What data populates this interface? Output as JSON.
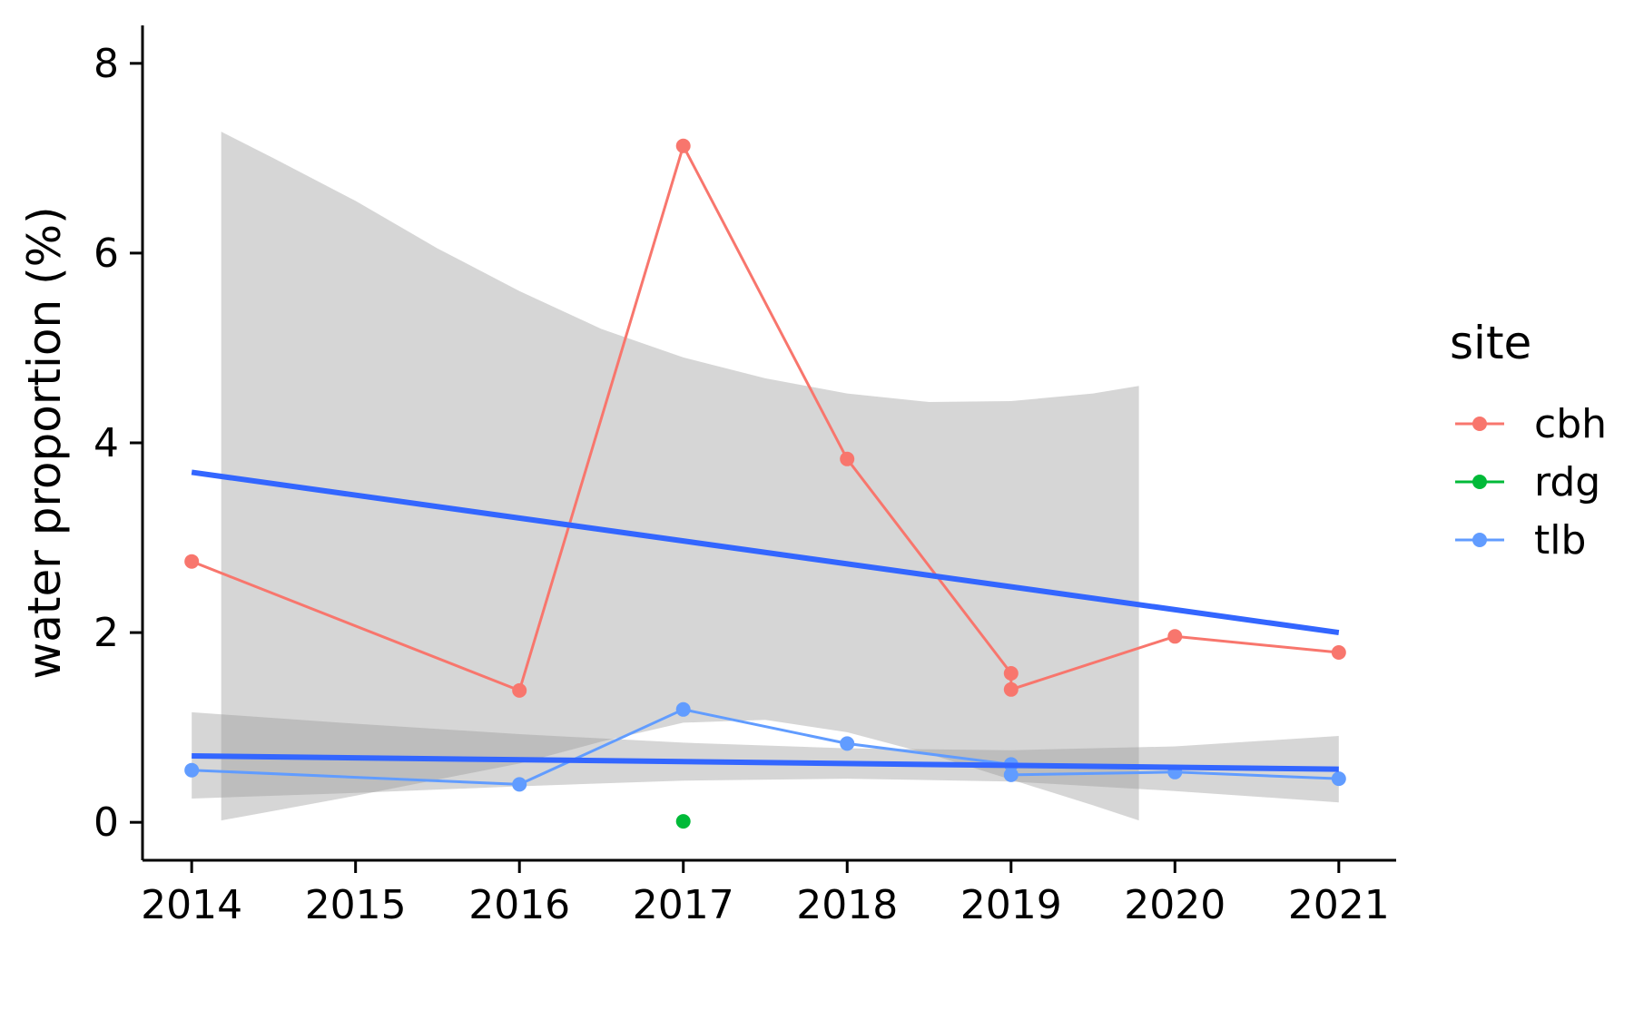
{
  "chart_data": {
    "type": "line",
    "ylabel": "water proportion (%)",
    "xlabel": "",
    "xlim": [
      2013.7,
      2021.35
    ],
    "ylim": [
      -0.4,
      8.4
    ],
    "x_ticks": [
      2014,
      2015,
      2016,
      2017,
      2018,
      2019,
      2020,
      2021
    ],
    "y_ticks": [
      0,
      2,
      4,
      6,
      8
    ],
    "grid": false,
    "legend": {
      "title": "site",
      "placement": "right"
    },
    "series": [
      {
        "name": "cbh",
        "color": "#F8766D",
        "points": [
          [
            2014,
            2.75
          ],
          [
            2016,
            1.39
          ],
          [
            2017,
            7.13
          ],
          [
            2018,
            3.83
          ],
          [
            2019,
            1.57
          ],
          [
            2019,
            1.4
          ],
          [
            2020,
            1.96
          ],
          [
            2021,
            1.79
          ]
        ]
      },
      {
        "name": "rdg",
        "color": "#00BA38",
        "points": [
          [
            2017,
            0.01
          ]
        ]
      },
      {
        "name": "tlb",
        "color": "#619CFF",
        "points": [
          [
            2014,
            0.55
          ],
          [
            2016,
            0.4
          ],
          [
            2017,
            1.19
          ],
          [
            2018,
            0.83
          ],
          [
            2019,
            0.61
          ],
          [
            2019,
            0.5
          ],
          [
            2020,
            0.53
          ],
          [
            2021,
            0.46
          ]
        ]
      }
    ],
    "trend_lines": [
      {
        "color": "#3366FF",
        "x": [
          2014,
          2021
        ],
        "y": [
          3.69,
          2.0
        ],
        "band_x": [
          2014.18,
          2014.5,
          2015,
          2015.5,
          2016,
          2016.5,
          2017,
          2017.5,
          2018,
          2018.5,
          2019,
          2019.5,
          2019.78
        ],
        "band_upper": [
          7.28,
          7.0,
          6.55,
          6.05,
          5.6,
          5.2,
          4.9,
          4.68,
          4.52,
          4.43,
          4.44,
          4.52,
          4.6
        ],
        "band_lower": [
          0.02,
          0.12,
          0.28,
          0.45,
          0.62,
          0.85,
          1.05,
          1.08,
          0.95,
          0.72,
          0.45,
          0.18,
          0.02
        ]
      },
      {
        "color": "#3366FF",
        "x": [
          2014,
          2021
        ],
        "y": [
          0.7,
          0.56
        ],
        "band_x": [
          2014,
          2015,
          2016,
          2017,
          2018,
          2019,
          2020,
          2021
        ],
        "band_upper": [
          1.16,
          1.04,
          0.93,
          0.84,
          0.78,
          0.76,
          0.8,
          0.91
        ],
        "band_lower": [
          0.25,
          0.31,
          0.38,
          0.44,
          0.46,
          0.43,
          0.33,
          0.21
        ]
      }
    ]
  }
}
